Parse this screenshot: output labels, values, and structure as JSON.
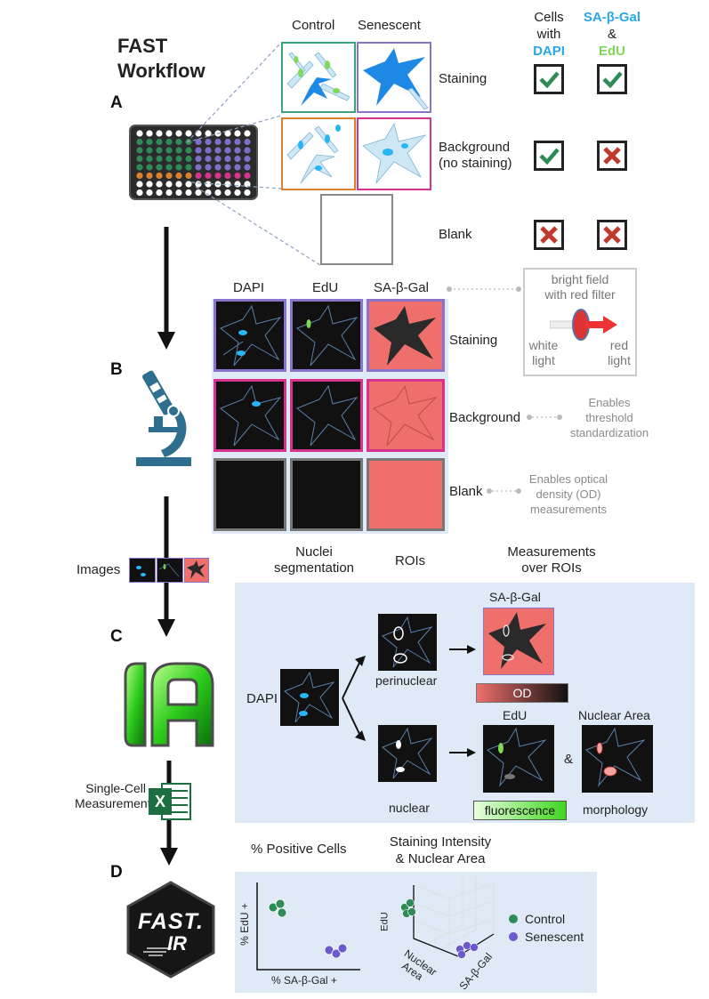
{
  "title": {
    "line1": "FAST",
    "line2": "Workflow"
  },
  "panels": {
    "a": "A",
    "b": "B",
    "c": "C",
    "d": "D"
  },
  "section_a": {
    "col_control": "Control",
    "col_senescent": "Senescent",
    "header_cells_with_1": "Cells",
    "header_cells_with_2": "with",
    "header_dapi": "DAPI",
    "header_sabgal": "SA-β-Gal",
    "header_amp": "&",
    "header_edu": "EdU",
    "rows": [
      {
        "label": "Staining",
        "dapi": "check",
        "sabgal_edu": "check"
      },
      {
        "label_line1": "Background",
        "label_line2": "(no staining)",
        "dapi": "check",
        "sabgal_edu": "cross"
      },
      {
        "label": "Blank",
        "dapi": "cross",
        "sabgal_edu": "cross"
      }
    ]
  },
  "section_b": {
    "col_dapi": "DAPI",
    "col_edu": "EdU",
    "col_sabgal": "SA-β-Gal",
    "row_staining": "Staining",
    "row_background": "Background",
    "row_blank": "Blank",
    "brightfield_line1": "bright field",
    "brightfield_line2": "with red filter",
    "white_light_1": "white",
    "white_light_2": "light",
    "red_light_1": "red",
    "red_light_2": "light",
    "background_note_1": "Enables",
    "background_note_2": "threshold",
    "background_note_3": "standardization",
    "blank_note_1": "Enables optical",
    "blank_note_2": "density (OD)",
    "blank_note_3": "measurements"
  },
  "images_label": "Images",
  "section_c": {
    "hdr_nuclei_1": "Nuclei",
    "hdr_nuclei_2": "segmentation",
    "hdr_rois": "ROIs",
    "hdr_measure_1": "Measurements",
    "hdr_measure_2": "over ROIs",
    "dapi": "DAPI",
    "perinuclear": "perinuclear",
    "nuclear": "nuclear",
    "sabgal": "SA-β-Gal",
    "od": "OD",
    "edu": "EdU",
    "amp": "&",
    "nuclear_area": "Nuclear Area",
    "fluorescence": "fluorescence",
    "morphology": "morphology"
  },
  "single_cell_1": "Single-Cell",
  "single_cell_2": "Measurements",
  "excel_letter": "X",
  "section_d": {
    "hdr_positive": "% Positive Cells",
    "hdr_intensity_1": "Staining Intensity",
    "hdr_intensity_2": "& Nuclear Area",
    "y_label": "% EdU +",
    "x_label": "% SA-β-Gal +",
    "axis3d_edu": "EdU",
    "axis3d_nuclear_1": "Nuclear",
    "axis3d_nuclear_2": "Area",
    "axis3d_sabgal": "SA-β-Gal",
    "legend": [
      {
        "name": "Control",
        "color": "#2e8b57"
      },
      {
        "name": "Senescent",
        "color": "#6a5acd"
      }
    ],
    "logo_line1": "FAST.",
    "logo_line2": "IR"
  },
  "colors": {
    "control_border": "#3aa37a",
    "senescent_border": "#8a73c8",
    "bg_control_border": "#d9822b",
    "bg_senescent_border": "#d6338f",
    "cyan": "#29b6f6",
    "edu_green": "#7ed957",
    "salmon": "#ef6f6c"
  }
}
